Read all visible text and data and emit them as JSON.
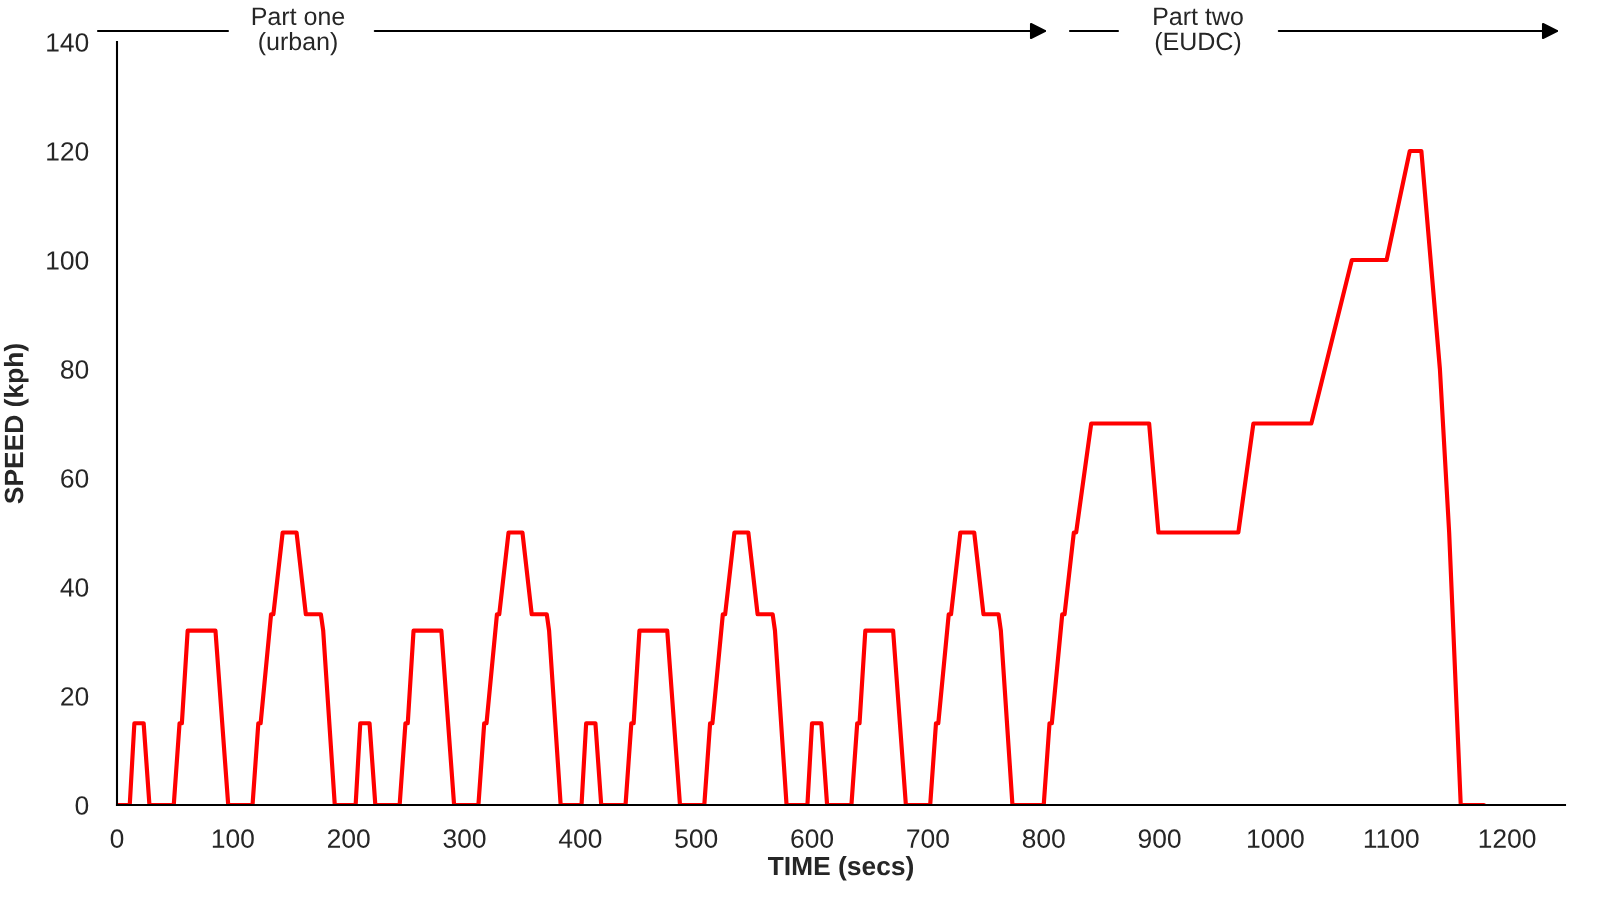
{
  "chart_data": {
    "type": "line",
    "xlabel": "TIME (secs)",
    "ylabel": "SPEED (kph)",
    "annotations": [
      "Part one\n(urban)",
      "Part two\n(EUDC)"
    ],
    "series": [
      {
        "color": "#ff0000",
        "x": [
          0,
          11,
          15,
          23,
          28,
          49,
          54,
          56,
          61,
          85,
          96,
          117,
          122,
          124,
          133,
          135,
          143,
          155,
          163,
          176,
          178,
          188,
          195,
          206,
          210,
          218,
          223,
          244,
          249,
          251,
          256,
          280,
          291,
          312,
          317,
          319,
          328,
          330,
          338,
          350,
          358,
          371,
          373,
          383,
          390,
          401,
          405,
          413,
          418,
          439,
          444,
          446,
          451,
          475,
          486,
          507,
          512,
          514,
          523,
          525,
          533,
          545,
          553,
          566,
          568,
          578,
          585,
          596,
          600,
          608,
          613,
          634,
          639,
          641,
          646,
          670,
          681,
          702,
          707,
          709,
          718,
          720,
          728,
          740,
          748,
          761,
          763,
          773,
          800,
          805,
          807,
          816,
          818,
          826,
          828,
          841,
          891,
          899,
          968,
          981,
          1031,
          1066,
          1096,
          1116,
          1126,
          1142,
          1150,
          1160,
          1180
        ],
        "values": [
          0,
          0,
          15,
          15,
          0,
          0,
          15,
          15,
          32,
          32,
          0,
          0,
          15,
          15,
          35,
          35,
          50,
          50,
          35,
          35,
          32,
          0,
          0,
          0,
          15,
          15,
          0,
          0,
          15,
          15,
          32,
          32,
          0,
          0,
          15,
          15,
          35,
          35,
          50,
          50,
          35,
          35,
          32,
          0,
          0,
          0,
          15,
          15,
          0,
          0,
          15,
          15,
          32,
          32,
          0,
          0,
          15,
          15,
          35,
          35,
          50,
          50,
          35,
          35,
          32,
          0,
          0,
          0,
          15,
          15,
          0,
          0,
          15,
          15,
          32,
          32,
          0,
          0,
          15,
          15,
          35,
          35,
          50,
          50,
          35,
          35,
          32,
          0,
          0,
          15,
          15,
          35,
          35,
          50,
          50,
          70,
          70,
          50,
          50,
          70,
          70,
          100,
          100,
          120,
          120,
          80,
          50,
          0,
          0
        ]
      }
    ],
    "xlim": [
      0,
      1250
    ],
    "xticks": [
      0,
      100,
      200,
      300,
      400,
      500,
      600,
      700,
      800,
      900,
      1000,
      1100,
      1200
    ],
    "ylim": [
      0,
      140
    ],
    "yticks": [
      0,
      20,
      40,
      60,
      80,
      100,
      120,
      140
    ],
    "grid": false,
    "legend": false,
    "marker": "none",
    "line_style": "solid"
  }
}
